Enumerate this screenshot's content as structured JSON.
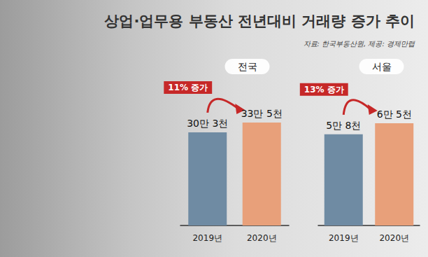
{
  "title": "상업·업무용 부동산 전년대비 거래량 증가 추이",
  "source": "자료: 한국부동산원, 제공: 경제만랩",
  "chart_data": [
    {
      "type": "bar",
      "title": "전국",
      "categories": [
        "2019년",
        "2020년"
      ],
      "values": [
        303000,
        335000
      ],
      "value_labels": [
        "30만 3천",
        "33만 5천"
      ],
      "colors": [
        "#6f8ba3",
        "#e8a07a"
      ],
      "ylim": [
        0,
        460000
      ],
      "data_labels": true,
      "tick_labels": "x",
      "annotation": "11% 증가"
    },
    {
      "type": "bar",
      "title": "서울",
      "categories": [
        "2019년",
        "2020년"
      ],
      "values": [
        58000,
        65000
      ],
      "value_labels": [
        "5만 8천",
        "6만 5천"
      ],
      "colors": [
        "#6f8ba3",
        "#e8a07a"
      ],
      "ylim": [
        0,
        90000
      ],
      "data_labels": true,
      "tick_labels": "x",
      "annotation": "13% 증가"
    }
  ]
}
